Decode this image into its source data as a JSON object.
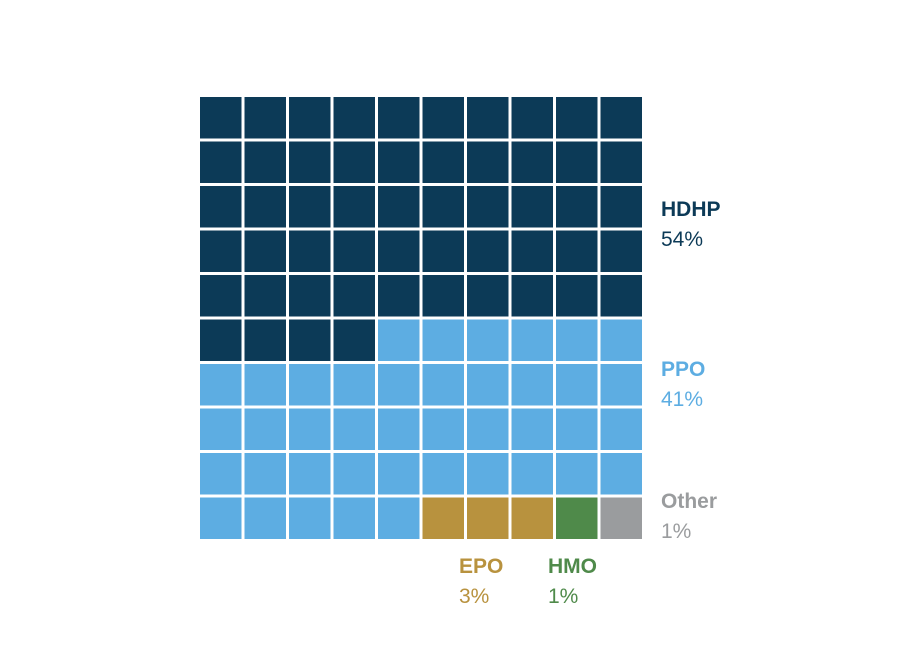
{
  "chart_data": {
    "type": "waffle",
    "grid": {
      "rows": 10,
      "cols": 10,
      "fill_order": "row-major"
    },
    "series": [
      {
        "name": "HDHP",
        "percent_label": "54%",
        "units": 54,
        "color": "#0c3a57"
      },
      {
        "name": "PPO",
        "percent_label": "41%",
        "units": 41,
        "color": "#5dade2"
      },
      {
        "name": "EPO",
        "percent_label": "3%",
        "units": 3,
        "color": "#b8923e"
      },
      {
        "name": "HMO",
        "percent_label": "1%",
        "units": 1,
        "color": "#4f8a4a"
      },
      {
        "name": "Other",
        "percent_label": "1%",
        "units": 1,
        "color": "#9a9c9e"
      }
    ]
  }
}
